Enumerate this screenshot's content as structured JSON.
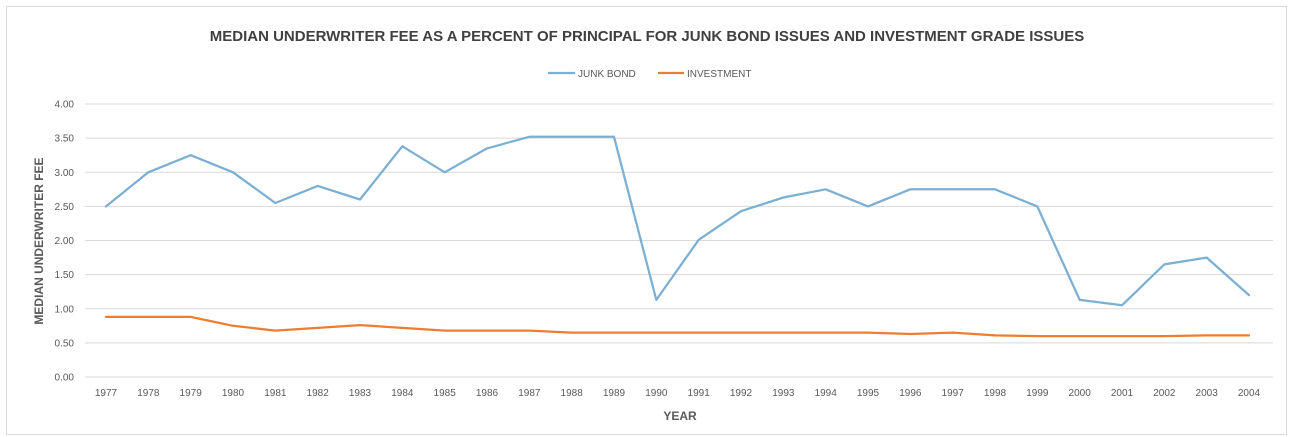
{
  "chart_data": {
    "type": "line",
    "title": "MEDIAN UNDERWRITER FEE AS A PERCENT OF PRINCIPAL FOR JUNK BOND ISSUES AND INVESTMENT GRADE ISSUES",
    "xlabel": "YEAR",
    "ylabel": "MEDIAN UNDERWRITER FEE",
    "ylim": [
      0,
      4
    ],
    "yticks": [
      "0.00",
      "0.50",
      "1.00",
      "1.50",
      "2.00",
      "2.50",
      "3.00",
      "3.50",
      "4.00"
    ],
    "grid": true,
    "legend_position": "top-center",
    "x": [
      "1977",
      "1978",
      "1979",
      "1980",
      "1981",
      "1982",
      "1983",
      "1984",
      "1985",
      "1986",
      "1987",
      "1988",
      "1989",
      "1990",
      "1991",
      "1992",
      "1993",
      "1994",
      "1995",
      "1996",
      "1997",
      "1998",
      "1999",
      "2000",
      "2001",
      "2002",
      "2003",
      "2004"
    ],
    "series": [
      {
        "name": "JUNK BOND",
        "color": "#7bafd4",
        "values": [
          2.5,
          3.0,
          3.25,
          3.0,
          2.55,
          2.8,
          2.6,
          3.38,
          3.0,
          3.35,
          3.52,
          3.52,
          3.52,
          1.13,
          2.01,
          2.43,
          2.63,
          2.75,
          2.5,
          2.75,
          2.75,
          2.75,
          2.5,
          1.13,
          1.05,
          1.65,
          1.75,
          1.2
        ]
      },
      {
        "name": "INVESTMENT",
        "color": "#ed7d31",
        "values": [
          0.88,
          0.88,
          0.88,
          0.75,
          0.68,
          0.72,
          0.76,
          0.72,
          0.68,
          0.68,
          0.68,
          0.65,
          0.65,
          0.65,
          0.65,
          0.65,
          0.65,
          0.65,
          0.65,
          0.63,
          0.65,
          0.61,
          0.6,
          0.6,
          0.6,
          0.6,
          0.61,
          0.61
        ]
      }
    ]
  }
}
